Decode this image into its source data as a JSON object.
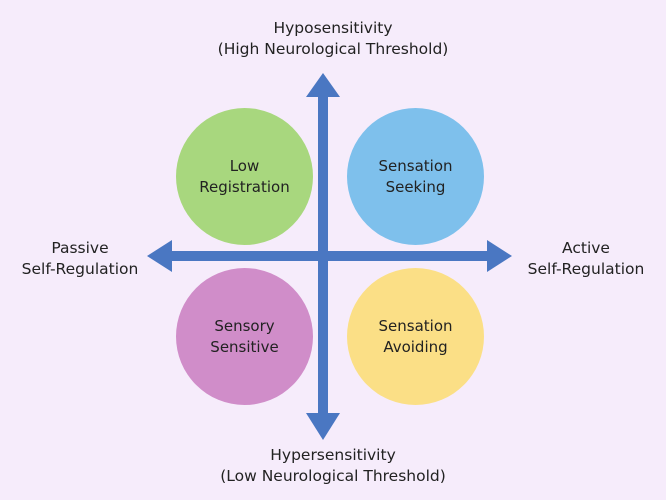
{
  "colors": {
    "background": "#f6ecfb",
    "arrow": "#4a77c2",
    "low_registration": "#a8d77e",
    "sensation_seeking": "#7ec0ec",
    "sensory_sensitive": "#d08dc9",
    "sensation_avoiding": "#fbdf86"
  },
  "axes": {
    "top": {
      "line1": "Hyposensitivity",
      "line2": "(High Neurological Threshold)"
    },
    "bottom": {
      "line1": "Hypersensitivity",
      "line2": "(Low Neurological Threshold)"
    },
    "left": {
      "line1": "Passive",
      "line2": "Self-Regulation"
    },
    "right": {
      "line1": "Active",
      "line2": "Self-Regulation"
    }
  },
  "quadrants": {
    "top_left": {
      "line1": "Low",
      "line2": "Registration"
    },
    "top_right": {
      "line1": "Sensation",
      "line2": "Seeking"
    },
    "bottom_left": {
      "line1": "Sensory",
      "line2": "Sensitive"
    },
    "bottom_right": {
      "line1": "Sensation",
      "line2": "Avoiding"
    }
  }
}
